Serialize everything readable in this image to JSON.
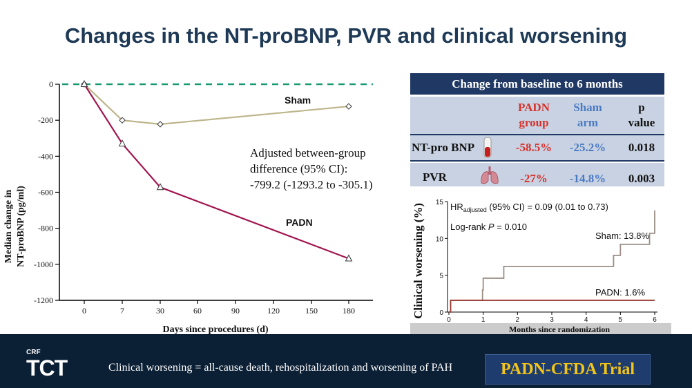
{
  "page": {
    "title": "Changes in the NT-proBNP, PVR and clinical worsening"
  },
  "colors": {
    "title": "#1f3a56",
    "sham_line": "#bdb58a",
    "padn_line": "#a0154f",
    "baseline_dashed": "#1a9a72",
    "footer_bg": "#0b1f35",
    "badge_text": "#f4c518",
    "table_header_bg": "#1f3864",
    "table_band": "#c8d2e2",
    "km_sham": "#9a8e86",
    "km_padn": "#9b3a32"
  },
  "table": {
    "header": "Change from baseline to 6 months",
    "col_padn": "PADN group",
    "col_padn_l1": "PADN",
    "col_padn_l2": "group",
    "col_sham_l1": "Sham",
    "col_sham_l2": "arm",
    "col_p_l1": "p",
    "col_p_l2": "value",
    "rows": [
      {
        "label": "NT-pro BNP",
        "icon": "blood-tube-icon",
        "padn": "-58.5%",
        "sham": "-25.2%",
        "p": "0.018"
      },
      {
        "label": "PVR",
        "icon": "lungs-icon",
        "padn": "-27%",
        "sham": "-14.8%",
        "p": "0.003"
      }
    ]
  },
  "chart_data": [
    {
      "type": "line",
      "title": "",
      "xlabel": "Days since procedures (d)",
      "ylabel": "Median change in NT-proBNP (pg/ml)",
      "x_tick_labels": [
        "0",
        "7",
        "30",
        "60",
        "90",
        "120",
        "150",
        "180"
      ],
      "y_ticks": [
        0,
        -200,
        -400,
        -600,
        -800,
        -1000,
        -1200
      ],
      "ylim": [
        -1200,
        0
      ],
      "baseline": 0,
      "series": [
        {
          "name": "Sham",
          "marker": "diamond",
          "x": [
            "0",
            "7",
            "30",
            "180"
          ],
          "values": [
            0,
            -200,
            -222,
            -123
          ]
        },
        {
          "name": "PADN",
          "marker": "triangle",
          "x": [
            "0",
            "7",
            "30",
            "180"
          ],
          "values": [
            0,
            -330,
            -572,
            -968
          ]
        }
      ],
      "annotation_lines": [
        "Adjusted between-group",
        "difference (95% CI):",
        "-799.2 (-1293.2 to -305.1)"
      ]
    },
    {
      "type": "line",
      "title": "",
      "xlabel": "Months since randomization",
      "ylabel": "Clinical worsening (%)",
      "xlim": [
        0,
        6
      ],
      "ylim": [
        0,
        15
      ],
      "x_ticks": [
        0,
        1,
        2,
        3,
        4,
        5,
        6
      ],
      "y_ticks": [
        0,
        5,
        10,
        15
      ],
      "annotation_hr_prefix": "HR",
      "annotation_hr_sub": "adjusted",
      "annotation_hr_rest": " (95% CI) = 0.09 (0.01 to 0.73)",
      "annotation_logrank_prefix": "Log-rank ",
      "annotation_logrank_p": "P",
      "annotation_logrank_rest": " = 0.010",
      "series": [
        {
          "name": "Sham",
          "label": "Sham: 13.8%",
          "x": [
            0,
            0.05,
            0.05,
            0.98,
            0.98,
            1.0,
            1.0,
            1.6,
            1.6,
            4.8,
            4.8,
            5.0,
            5.0,
            5.85,
            5.85,
            6.0,
            6.0
          ],
          "values": [
            0,
            0,
            1.6,
            1.6,
            3.0,
            3.0,
            4.6,
            4.6,
            6.2,
            6.2,
            7.7,
            7.7,
            9.2,
            9.2,
            10.7,
            10.7,
            13.8
          ]
        },
        {
          "name": "PADN",
          "label": "PADN: 1.6%",
          "x": [
            0,
            0.05,
            0.05,
            6.0
          ],
          "values": [
            0,
            0,
            1.6,
            1.6
          ]
        }
      ]
    }
  ],
  "footer": {
    "note": "Clinical worsening = all-cause death, rehospitalization and worsening of PAH",
    "badge": "PADN-CFDA Trial",
    "logo_small": "CRF",
    "logo_large": "TCT"
  }
}
